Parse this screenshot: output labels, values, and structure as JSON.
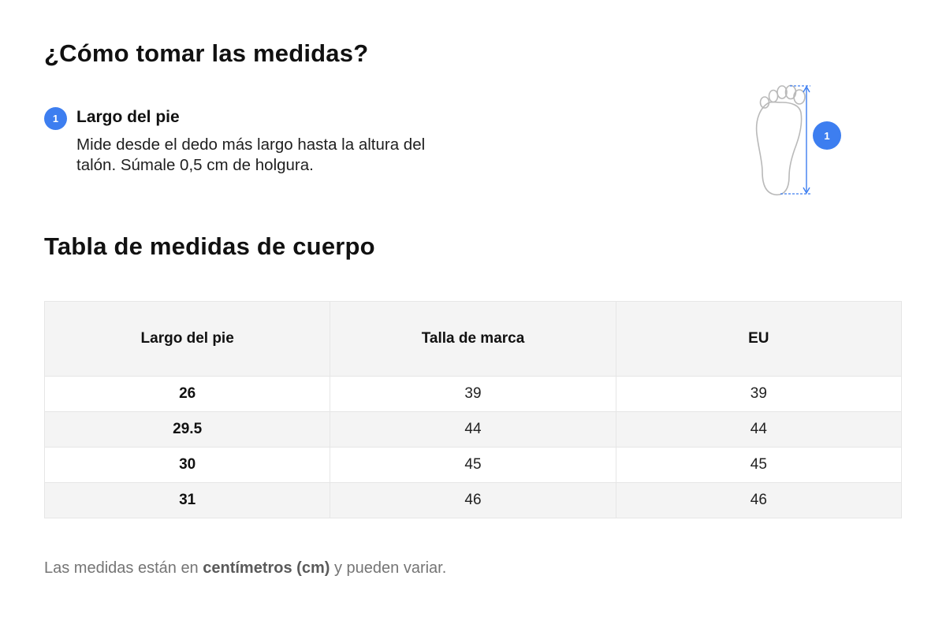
{
  "page": {
    "title": "¿Cómo tomar las medidas?"
  },
  "measurement": {
    "step_number": "1",
    "step_title": "Largo del pie",
    "step_description": "Mide desde el dedo más largo hasta la altura del talón. Súmale 0,5 cm de holgura.",
    "figure_badge": "1",
    "accent_color": "#3d7ef0",
    "icon": "foot-outline-icon"
  },
  "size_table": {
    "title": "Tabla de medidas de cuerpo",
    "columns": [
      "Largo del pie",
      "Talla de marca",
      "EU"
    ],
    "rows": [
      [
        "26",
        "39",
        "39"
      ],
      [
        "29.5",
        "44",
        "44"
      ],
      [
        "30",
        "45",
        "45"
      ],
      [
        "31",
        "46",
        "46"
      ]
    ]
  },
  "note": {
    "prefix": "Las medidas están en ",
    "emphasis": "centímetros (cm)",
    "suffix": " y pueden variar."
  }
}
